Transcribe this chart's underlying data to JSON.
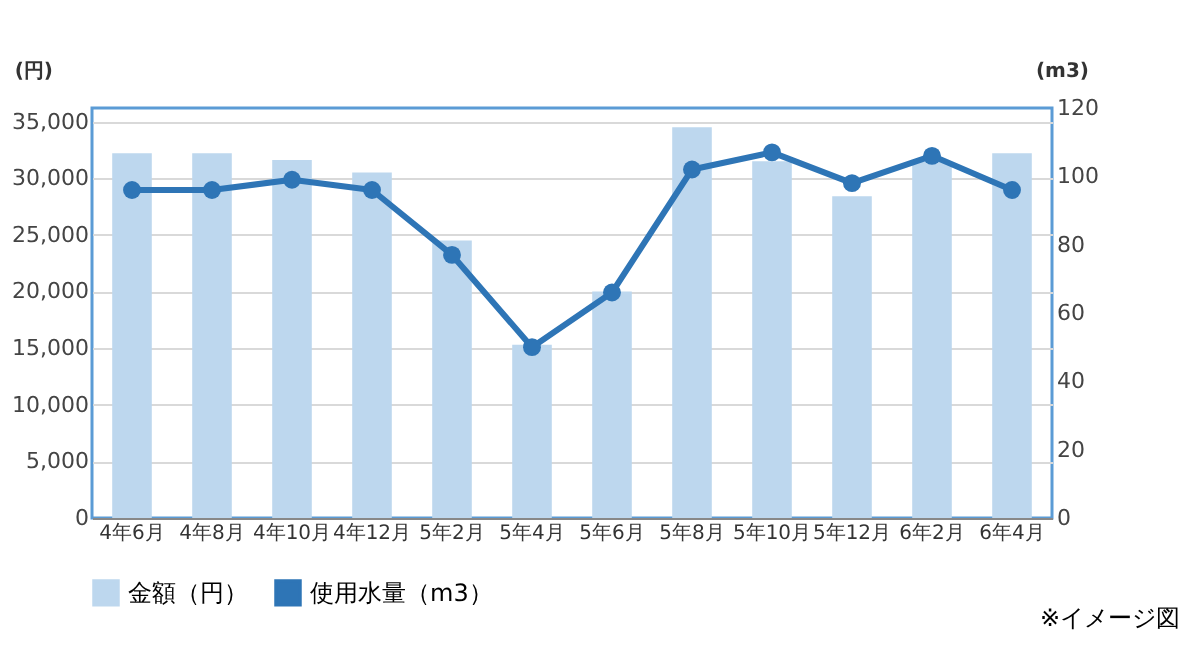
{
  "chart_data": {
    "type": "bar",
    "ylabel": "(円)",
    "y2label": "(m3)",
    "categories": [
      "4年6月",
      "4年8月",
      "4年10月",
      "4年12月",
      "5年2月",
      "5年4月",
      "5年6月",
      "5年8月",
      "5年10月",
      "5年12月",
      "6年2月",
      "6年4月"
    ],
    "series": [
      {
        "name": "金額（円）",
        "color": "#bdd7ee",
        "values": [
          32200,
          32200,
          31600,
          30500,
          24500,
          15300,
          20000,
          34500,
          31500,
          28400,
          31500,
          32200
        ]
      },
      {
        "name": "使用水量（m3）",
        "type": "line",
        "axis": "y2",
        "color": "#2e75b6",
        "values": [
          96,
          96,
          99,
          96,
          77,
          50,
          66,
          102,
          107,
          98,
          106,
          96
        ]
      }
    ],
    "ylim": [
      0,
      36200
    ],
    "yticks": [
      0,
      {
        "value": 5000,
        "label": "5,000"
      },
      {
        "value": 10000,
        "label": "10,000"
      },
      {
        "value": 15000,
        "label": "15,000"
      },
      {
        "value": 20000,
        "label": "20,000"
      },
      {
        "value": 25000,
        "label": "25,000"
      },
      {
        "value": 30000,
        "label": "30,000"
      },
      {
        "value": 35000,
        "label": "35,000"
      }
    ],
    "y2lim": [
      0,
      120
    ],
    "y2ticks": [
      0,
      20,
      40,
      60,
      80,
      100,
      120
    ],
    "grid": "y",
    "legend": "bottom",
    "marker": "circle",
    "annotations": [
      "※イメージ図"
    ]
  }
}
